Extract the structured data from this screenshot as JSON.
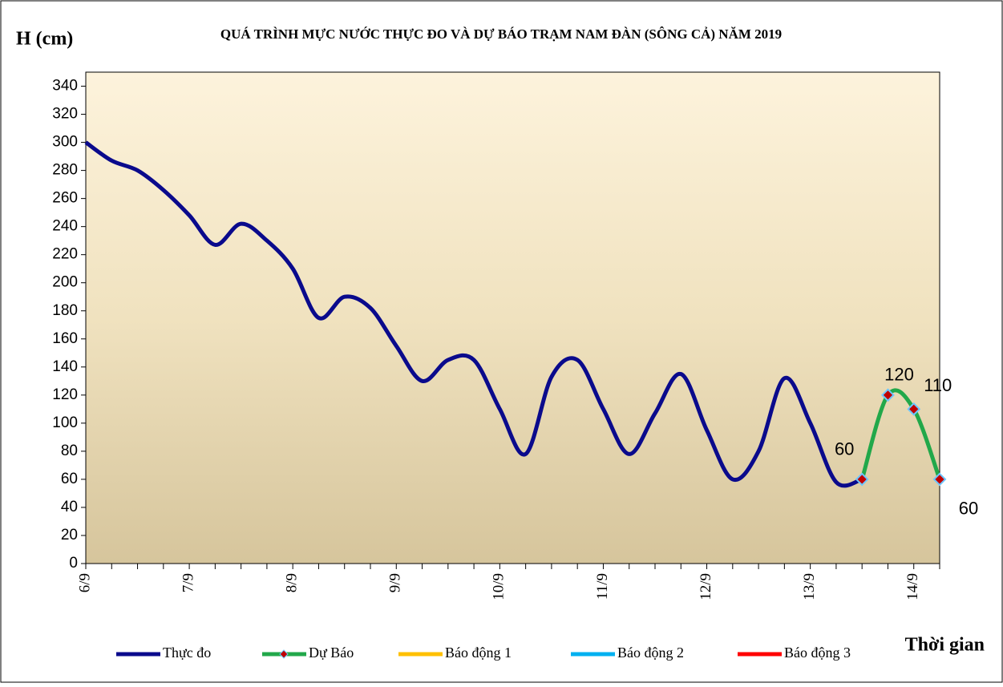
{
  "chart_data": {
    "type": "line",
    "title": "QUÁ TRÌNH MỰC NƯỚC THỰC ĐO VÀ DỰ BÁO TRẠM NAM ĐÀN (SÔNG CẢ) NĂM 2019",
    "y_label": "H (cm)",
    "x_label": "Thời gian",
    "categories": [
      "6/9",
      null,
      null,
      null,
      "7/9",
      null,
      null,
      null,
      "8/9",
      null,
      null,
      null,
      "9/9",
      null,
      null,
      null,
      "10/9",
      null,
      null,
      null,
      "11/9",
      null,
      null,
      null,
      "12/9",
      null,
      null,
      null,
      "13/9",
      null,
      null,
      null,
      "14/9",
      null
    ],
    "series": [
      {
        "name": "Thực đo",
        "color": "#0a0a8c",
        "values": [
          300,
          287,
          280,
          266,
          248,
          227,
          242,
          230,
          210,
          175,
          190,
          182,
          155,
          130,
          145,
          145,
          110,
          78,
          133,
          145,
          110,
          78,
          107,
          135,
          95,
          60,
          80,
          132,
          100,
          58,
          60,
          null,
          null,
          null
        ]
      },
      {
        "name": "Dự Báo",
        "color": "#22a84a",
        "values": [
          null,
          null,
          null,
          null,
          null,
          null,
          null,
          null,
          null,
          null,
          null,
          null,
          null,
          null,
          null,
          null,
          null,
          null,
          null,
          null,
          null,
          null,
          null,
          null,
          null,
          null,
          null,
          null,
          null,
          null,
          60,
          120,
          110,
          60
        ],
        "value_labels": [
          null,
          null,
          null,
          null,
          null,
          null,
          null,
          null,
          null,
          null,
          null,
          null,
          null,
          null,
          null,
          null,
          null,
          null,
          null,
          null,
          null,
          null,
          null,
          null,
          null,
          null,
          null,
          null,
          null,
          null,
          "60",
          "120",
          "110",
          "60"
        ]
      },
      {
        "name": "Báo động 1",
        "color": "#ffc000",
        "values": [
          null,
          null,
          null,
          null,
          null,
          null,
          null,
          null,
          null,
          null,
          null,
          null,
          null,
          null,
          null,
          null,
          null,
          null,
          null,
          null,
          null,
          null,
          null,
          null,
          null,
          null,
          null,
          null,
          null,
          null,
          null,
          null,
          null,
          null
        ]
      },
      {
        "name": "Báo động 2",
        "color": "#00b0f0",
        "values": [
          null,
          null,
          null,
          null,
          null,
          null,
          null,
          null,
          null,
          null,
          null,
          null,
          null,
          null,
          null,
          null,
          null,
          null,
          null,
          null,
          null,
          null,
          null,
          null,
          null,
          null,
          null,
          null,
          null,
          null,
          null,
          null,
          null,
          null
        ]
      },
      {
        "name": "Báo động 3",
        "color": "#ff0000",
        "values": [
          null,
          null,
          null,
          null,
          null,
          null,
          null,
          null,
          null,
          null,
          null,
          null,
          null,
          null,
          null,
          null,
          null,
          null,
          null,
          null,
          null,
          null,
          null,
          null,
          null,
          null,
          null,
          null,
          null,
          null,
          null,
          null,
          null,
          null
        ]
      }
    ],
    "ylim": [
      0,
      350
    ],
    "yticks": [
      0,
      20,
      40,
      60,
      80,
      100,
      120,
      140,
      160,
      180,
      200,
      220,
      240,
      260,
      280,
      300,
      320,
      340
    ]
  }
}
